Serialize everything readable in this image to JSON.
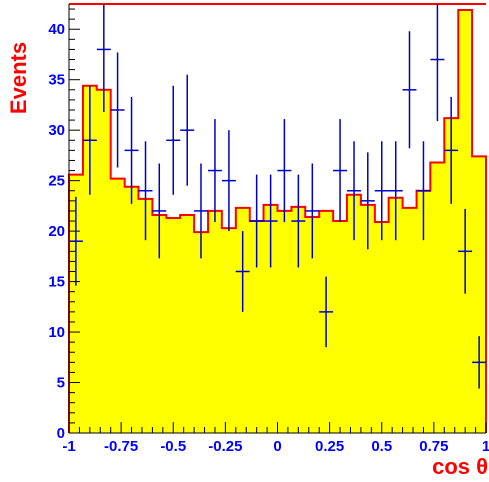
{
  "chart_data": {
    "type": "bar",
    "xlabel": "cos θ",
    "ylabel": "Events",
    "xlim": [
      -1,
      1
    ],
    "ylim": [
      0,
      42.5
    ],
    "x_ticks": [
      "-1",
      "-0.75",
      "-0.5",
      "-0.25",
      "0",
      "0.25",
      "0.5",
      "0.75",
      "1"
    ],
    "y_ticks": [
      "0",
      "5",
      "10",
      "15",
      "20",
      "25",
      "30",
      "35",
      "40"
    ],
    "bin_edges": [
      -1.0,
      -0.933,
      -0.867,
      -0.8,
      -0.733,
      -0.667,
      -0.6,
      -0.533,
      -0.467,
      -0.4,
      -0.333,
      -0.267,
      -0.2,
      -0.133,
      -0.067,
      0.0,
      0.067,
      0.133,
      0.2,
      0.267,
      0.333,
      0.4,
      0.467,
      0.533,
      0.6,
      0.667,
      0.733,
      0.8,
      0.867,
      0.933,
      1.0
    ],
    "series": [
      {
        "kind": "histogram",
        "values": [
          25.6,
          34.4,
          34.0,
          25.2,
          24.4,
          23.2,
          21.6,
          21.3,
          21.6,
          19.9,
          22.0,
          20.3,
          22.3,
          21.0,
          22.6,
          22.0,
          22.4,
          21.4,
          22.0,
          21.0,
          23.6,
          22.6,
          20.9,
          23.3,
          22.3,
          24.0,
          26.8,
          31.2,
          41.9,
          27.4
        ]
      },
      {
        "kind": "data-points",
        "x": [
          -0.967,
          -0.9,
          -0.833,
          -0.767,
          -0.7,
          -0.633,
          -0.567,
          -0.5,
          -0.433,
          -0.367,
          -0.3,
          -0.233,
          -0.167,
          -0.1,
          -0.033,
          0.033,
          0.1,
          0.167,
          0.233,
          0.3,
          0.367,
          0.433,
          0.5,
          0.567,
          0.633,
          0.7,
          0.767,
          0.833,
          0.9,
          0.967
        ],
        "y": [
          19,
          29,
          38,
          32,
          28,
          24,
          22,
          29,
          30,
          22,
          26,
          25,
          16,
          21,
          21,
          26,
          21,
          22,
          12,
          26,
          24,
          23,
          24,
          24,
          34,
          24,
          37,
          28,
          18,
          7
        ],
        "err": [
          4.4,
          5.4,
          6.2,
          5.7,
          5.3,
          4.9,
          4.7,
          5.4,
          5.5,
          4.7,
          5.1,
          5.0,
          4.0,
          4.6,
          4.6,
          5.1,
          4.6,
          4.7,
          3.5,
          5.1,
          4.9,
          4.8,
          4.9,
          4.9,
          5.8,
          4.9,
          6.1,
          5.3,
          4.2,
          2.6
        ]
      }
    ],
    "colors": {
      "fill": "#ffff00",
      "outline": "#ff0000",
      "points": "#0000cc",
      "ticks": "#0000ff",
      "axis_title": "#ff0000"
    }
  }
}
